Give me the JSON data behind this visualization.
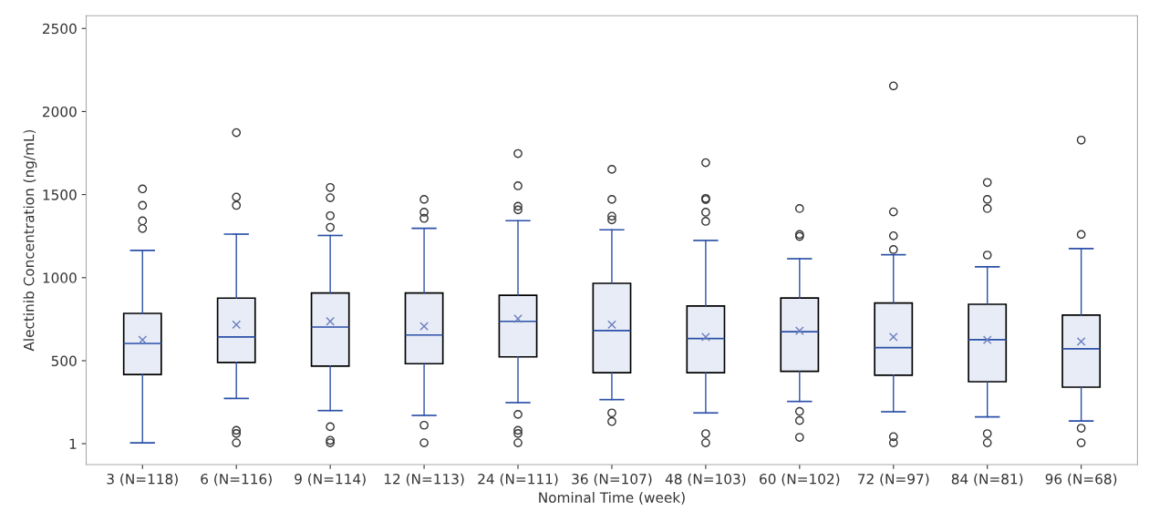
{
  "chart_data": {
    "type": "box",
    "xlabel": "Nominal Time (week)",
    "ylabel": "Alectinib Concentration (ng/mL)",
    "categories": [
      "3 (N=118)",
      "6 (N=116)",
      "9 (N=114)",
      "12 (N=113)",
      "24 (N=111)",
      "36 (N=107)",
      "48 (N=103)",
      "60 (N=102)",
      "72 (N=97)",
      "84 (N=81)",
      "96 (N=68)"
    ],
    "boxes": [
      {
        "low": 6,
        "q1": 417,
        "median": 604,
        "q3": 785,
        "high": 1164,
        "mean": 625,
        "outliers": [
          1534,
          1435,
          1342,
          1296
        ]
      },
      {
        "low": 273,
        "q1": 490,
        "median": 643,
        "q3": 877,
        "high": 1262,
        "mean": 717,
        "outliers": [
          1873,
          1485,
          1435,
          81,
          62,
          6
        ]
      },
      {
        "low": 200,
        "q1": 468,
        "median": 703,
        "q3": 908,
        "high": 1254,
        "mean": 737,
        "outliers": [
          1543,
          1481,
          1373,
          1303,
          103,
          21,
          6
        ]
      },
      {
        "low": 171,
        "q1": 482,
        "median": 655,
        "q3": 908,
        "high": 1297,
        "mean": 708,
        "outliers": [
          1471,
          1394,
          1357,
          112,
          6
        ]
      },
      {
        "low": 248,
        "q1": 523,
        "median": 737,
        "q3": 894,
        "high": 1343,
        "mean": 753,
        "outliers": [
          1747,
          1553,
          1430,
          1408,
          177,
          81,
          62,
          6
        ]
      },
      {
        "low": 266,
        "q1": 428,
        "median": 682,
        "q3": 966,
        "high": 1288,
        "mean": 717,
        "outliers": [
          1652,
          1471,
          1370,
          1348,
          186,
          134
        ]
      },
      {
        "low": 186,
        "q1": 428,
        "median": 634,
        "q3": 830,
        "high": 1224,
        "mean": 643,
        "outliers": [
          1692,
          1477,
          1470,
          1394,
          1339,
          61,
          6
        ]
      },
      {
        "low": 255,
        "q1": 436,
        "median": 675,
        "q3": 878,
        "high": 1114,
        "mean": 680,
        "outliers": [
          1416,
          1260,
          1248,
          195,
          140,
          39
        ]
      },
      {
        "low": 193,
        "q1": 413,
        "median": 579,
        "q3": 847,
        "high": 1138,
        "mean": 643,
        "outliers": [
          2154,
          1396,
          1252,
          1169,
          43,
          6
        ]
      },
      {
        "low": 162,
        "q1": 374,
        "median": 627,
        "q3": 840,
        "high": 1065,
        "mean": 625,
        "outliers": [
          1573,
          1471,
          1416,
          1136,
          61,
          6
        ]
      },
      {
        "low": 137,
        "q1": 341,
        "median": 572,
        "q3": 775,
        "high": 1175,
        "mean": 616,
        "outliers": [
          1828,
          1260,
          94,
          6
        ]
      }
    ],
    "color": "#e8ecf6",
    "ylim": [
      -125,
      2577
    ],
    "yticks": [
      1,
      500,
      1000,
      1500,
      2000,
      2500
    ],
    "grid": false,
    "legend": false
  }
}
